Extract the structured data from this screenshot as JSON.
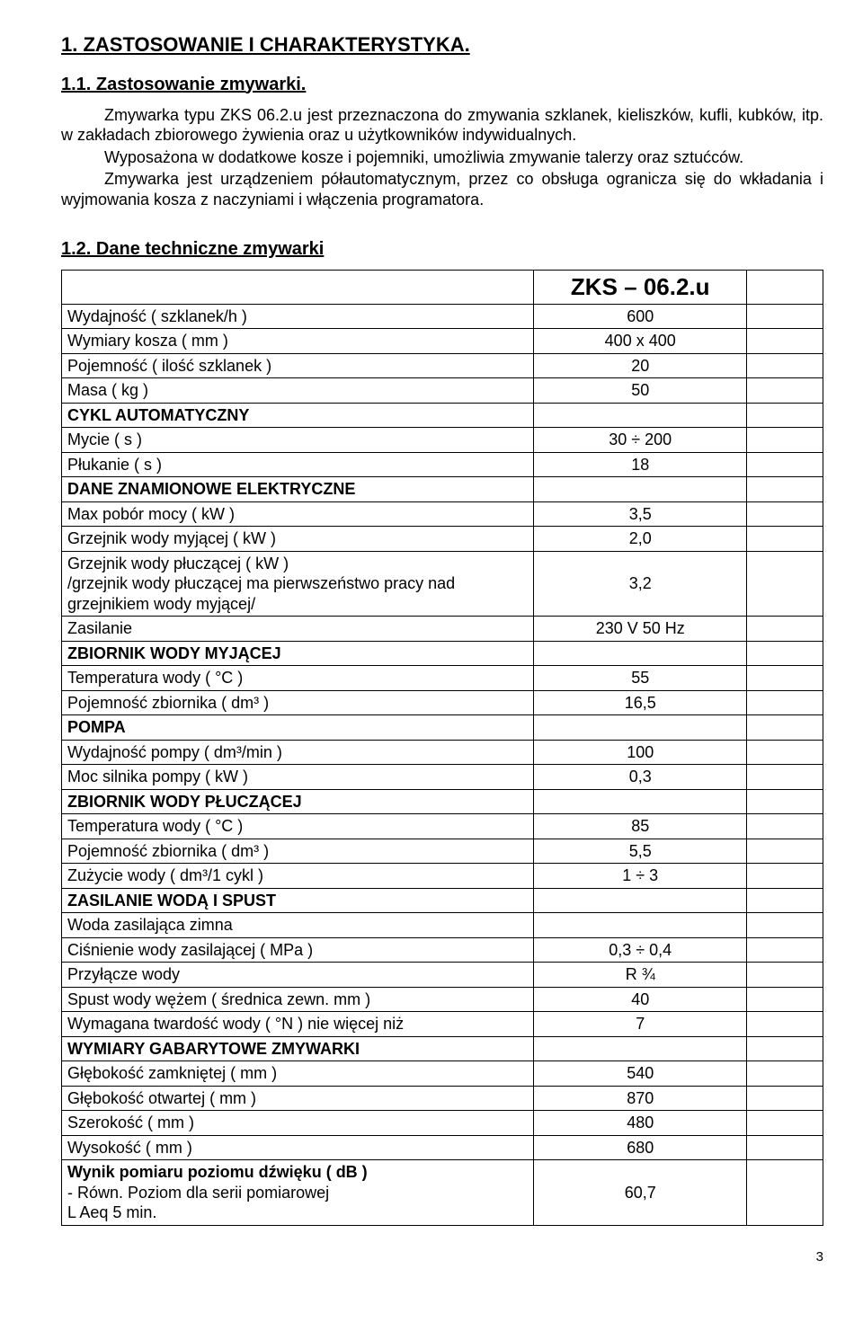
{
  "typography": {
    "body_font": "Arial",
    "body_size_pt": 14,
    "h1_size_pt": 17,
    "h2_size_pt": 15,
    "model_header_size_pt": 20,
    "color_text": "#000000",
    "color_bg": "#ffffff",
    "border_color": "#000000"
  },
  "h1": "1.     ZASTOSOWANIE I CHARAKTERYSTYKA.",
  "h2_app": "1.1.    Zastosowanie zmywarki.",
  "para1": "Zmywarka typu ZKS 06.2.u jest przeznaczona do zmywania szklanek, kieliszków, kufli, kubków, itp. w zakładach zbiorowego żywienia oraz u użytkowników indywidualnych.",
  "para2": "Wyposażona w dodatkowe kosze i pojemniki, umożliwia zmywanie talerzy oraz sztućców.",
  "para3": "Zmywarka jest urządzeniem półautomatycznym, przez co obsługa ogranicza się do wkładania i wyjmowania kosza z naczyniami i włączenia programatora.",
  "h2_data": "1.2.     Dane techniczne zmywarki",
  "model": "ZKS – 06.2.u",
  "table": {
    "columns": [
      "label",
      "value"
    ],
    "col_widths_pct": [
      62,
      28,
      10
    ],
    "rows": [
      {
        "label": "Wydajność   ( szklanek/h )",
        "value": "600"
      },
      {
        "label": "Wymiary kosza  ( mm )",
        "value": "400 x 400"
      },
      {
        "label": "Pojemność   ( ilość szklanek )",
        "value": "20"
      },
      {
        "label": "Masa  ( kg )",
        "value": "50"
      },
      {
        "label": "CYKL  AUTOMATYCZNY",
        "value": "",
        "bold": true
      },
      {
        "label": "Mycie  ( s )",
        "value": "30 ÷ 200"
      },
      {
        "label": "Płukanie  ( s )",
        "value": "18"
      },
      {
        "label": "DANE ZNAMIONOWE ELEKTRYCZNE",
        "value": "",
        "bold": true
      },
      {
        "label": "Max pobór mocy  ( kW )",
        "value": "3,5"
      },
      {
        "label": "Grzejnik wody myjącej  ( kW )",
        "value": "2,0"
      },
      {
        "label": "Grzejnik wody płuczącej  ( kW )\n/grzejnik wody płuczącej ma pierwszeństwo pracy nad grzejnikiem wody myjącej/",
        "value": "3,2"
      },
      {
        "label": "Zasilanie",
        "value": "230 V   50 Hz"
      },
      {
        "label": "ZBIORNIK WODY MYJĄCEJ",
        "value": "",
        "bold": true
      },
      {
        "label": "Temperatura wody  ( °C )",
        "value": "55"
      },
      {
        "label": "Pojemność zbiornika  ( dm³ )",
        "value": "16,5"
      },
      {
        "label": "POMPA",
        "value": "",
        "bold": true
      },
      {
        "label": "Wydajność pompy  ( dm³/min )",
        "value": "100"
      },
      {
        "label": "Moc silnika pompy  ( kW )",
        "value": "0,3"
      },
      {
        "label": "ZBIORNIK WODY PŁUCZĄCEJ",
        "value": "",
        "bold": true
      },
      {
        "label": "Temperatura wody  ( °C )",
        "value": "85"
      },
      {
        "label": "Pojemność zbiornika  ( dm³ )",
        "value": "5,5"
      },
      {
        "label": "Zużycie wody  ( dm³/1 cykl )",
        "value": "1 ÷ 3"
      },
      {
        "label": "ZASILANIE WODĄ I SPUST",
        "value": "",
        "bold": true
      },
      {
        "label": "Woda zasilająca zimna",
        "value": ""
      },
      {
        "label": "Ciśnienie wody zasilającej  ( MPa )",
        "value": "0,3 ÷ 0,4"
      },
      {
        "label": "Przyłącze wody",
        "value": "R ¾"
      },
      {
        "label": "Spust wody wężem  ( średnica zewn. mm )",
        "value": "40"
      },
      {
        "label": "Wymagana twardość wody  ( °N ) nie więcej niż",
        "value": "7"
      },
      {
        "label": "WYMIARY GABARYTOWE ZMYWARKI",
        "value": "",
        "bold": true
      },
      {
        "label": "Głębokość zamkniętej  ( mm )",
        "value": "540"
      },
      {
        "label": "Głębokość otwartej  ( mm )",
        "value": "870"
      },
      {
        "label": "Szerokość   ( mm )",
        "value": "480"
      },
      {
        "label": "Wysokość  ( mm )",
        "value": "680"
      },
      {
        "label": "Wynik pomiaru poziomu dźwięku  ( dB )\n   -    Równ. Poziom dla serii pomiarowej\n                          L Aeq   5 min.",
        "value": "60,7",
        "bold_first": true
      }
    ]
  },
  "page_number": "3"
}
